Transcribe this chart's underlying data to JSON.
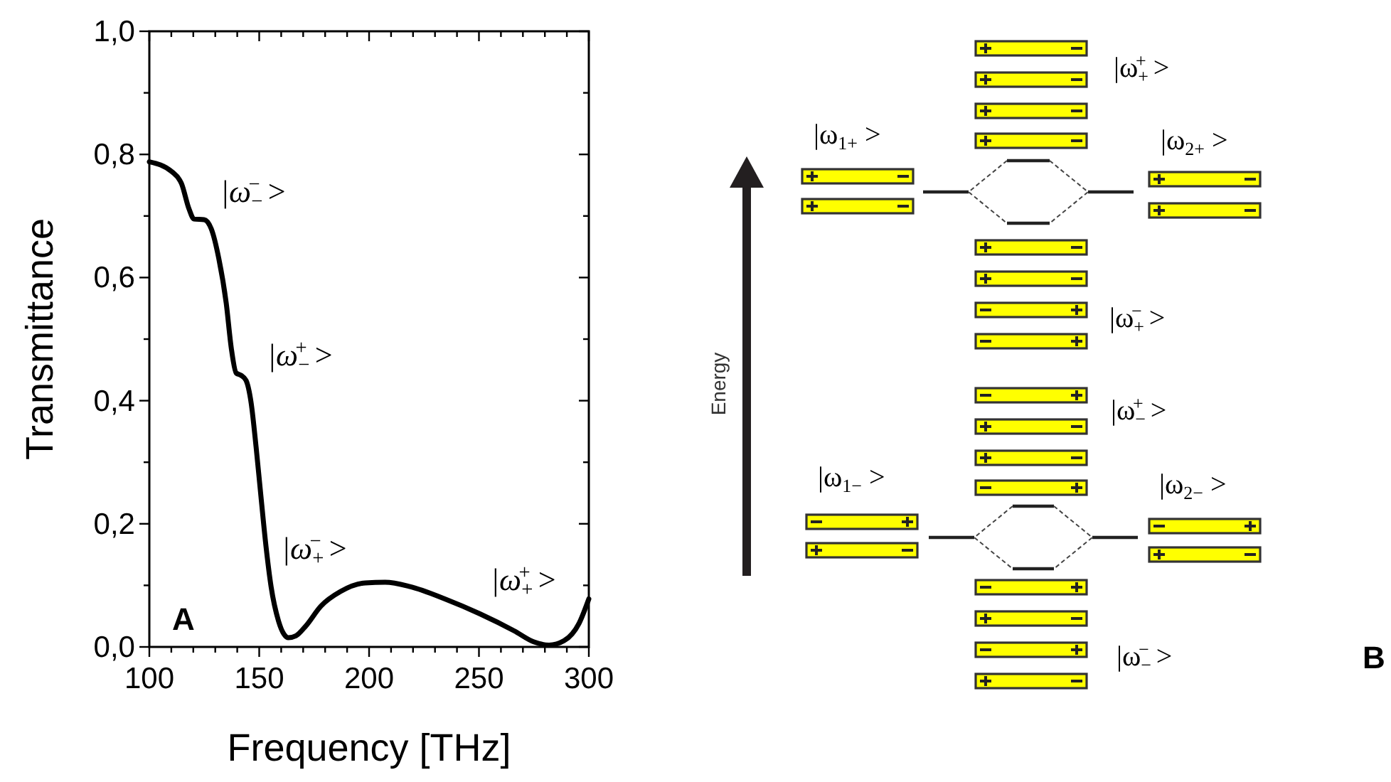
{
  "chart_data": [
    {
      "type": "line",
      "xlabel": "Frequency [THz]",
      "ylabel": "Transmittance",
      "x": [
        100,
        110.2,
        114.7,
        118.1,
        120.3,
        124.9,
        128.2,
        131.6,
        135,
        137.3,
        139.5,
        141.8,
        144,
        146.3,
        148.6,
        150.8,
        153.1,
        155.4,
        158.8,
        163.3,
        166.7,
        171.2,
        178,
        187,
        198.3,
        207.3,
        218.6,
        234.5,
        250.3,
        266.1,
        275.1,
        281.9,
        288.7,
        295.5,
        300
      ],
      "series": [
        {
          "color": "#000000",
          "values": [
            0.788,
            0.772,
            0.752,
            0.711,
            0.695,
            0.694,
            0.679,
            0.631,
            0.558,
            0.485,
            0.445,
            0.441,
            0.433,
            0.397,
            0.324,
            0.244,
            0.163,
            0.098,
            0.042,
            0.015,
            0.018,
            0.034,
            0.066,
            0.09,
            0.104,
            0.105,
            0.098,
            0.078,
            0.054,
            0.026,
            0.008,
            0.003,
            0.01,
            0.038,
            0.078
          ]
        }
      ],
      "xlim": [
        100,
        300
      ],
      "xticks": [
        100,
        {
          "value": 110,
          "label": null
        },
        {
          "value": 120,
          "label": null
        },
        {
          "value": 130,
          "label": null
        },
        {
          "value": 140,
          "label": null
        },
        150,
        {
          "value": 160,
          "label": null
        },
        {
          "value": 170,
          "label": null
        },
        {
          "value": 180,
          "label": null
        },
        {
          "value": 190,
          "label": null
        },
        200,
        {
          "value": 210,
          "label": null
        },
        {
          "value": 220,
          "label": null
        },
        {
          "value": 230,
          "label": null
        },
        {
          "value": 240,
          "label": null
        },
        250,
        {
          "value": 260,
          "label": null
        },
        {
          "value": 270,
          "label": null
        },
        {
          "value": 280,
          "label": null
        },
        {
          "value": 290,
          "label": null
        },
        300
      ],
      "ylim": [
        0,
        1
      ],
      "yticks": [
        {
          "value": 0,
          "label": "0,0"
        },
        {
          "value": 0.1,
          "label": null
        },
        {
          "value": 0.2,
          "label": "0,2"
        },
        {
          "value": 0.3,
          "label": null
        },
        {
          "value": 0.4,
          "label": "0,4"
        },
        {
          "value": 0.5,
          "label": null
        },
        {
          "value": 0.6,
          "label": "0,6"
        },
        {
          "value": 0.7,
          "label": null
        },
        {
          "value": 0.8,
          "label": "0,8"
        },
        {
          "value": 0.9,
          "label": null
        },
        {
          "value": 1,
          "label": "1,0"
        }
      ],
      "grid": false,
      "marker": "none",
      "line_style": "solid",
      "annotations": [
        "|ω$_{−}$$^{−}$ >",
        "|ω$_{−}$$^{+}$ >",
        "|ω$_{+}$$^{−}$ >",
        "|ω$_{+}$$^{+}$ >",
        "A"
      ]
    },
    {
      "type": "other",
      "ylabel": "Energy",
      "annotations": [
        "|ω$_{1+}$ >",
        "|ω$_{+}$$^{+}$ >",
        "|ω$_{2+}$ >",
        "|ω$_{+}$$^{−}$ >",
        "|ω$_{−}$$^{+}$ >",
        "|ω$_{1−}$ >",
        "|ω$_{2−}$ >",
        "|ω$_{−}$$^{−}$ >",
        "B"
      ]
    }
  ]
}
